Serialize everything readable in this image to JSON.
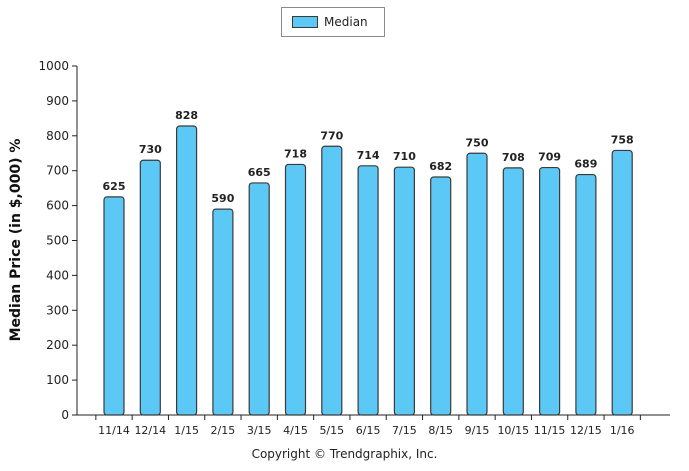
{
  "chart_data": {
    "type": "bar",
    "categories": [
      "11/14",
      "12/14",
      "1/15",
      "2/15",
      "3/15",
      "4/15",
      "5/15",
      "6/15",
      "7/15",
      "8/15",
      "9/15",
      "10/15",
      "11/15",
      "12/15",
      "1/16"
    ],
    "series": [
      {
        "name": "Median",
        "values": [
          625,
          730,
          828,
          590,
          665,
          718,
          770,
          714,
          710,
          682,
          750,
          708,
          709,
          689,
          758
        ]
      }
    ],
    "title": "",
    "xlabel": "",
    "ylabel": "Median Price (in $,000) %",
    "ylim": [
      0,
      1000
    ],
    "yticks": [
      0,
      100,
      200,
      300,
      400,
      500,
      600,
      700,
      800,
      900,
      1000
    ],
    "grid": false,
    "legend": "top-center",
    "bar_color": "#5bc8f5",
    "bar_border_color": "#3a3a3a"
  },
  "footer": {
    "copyright": "Copyright © Trendgraphix, Inc."
  }
}
